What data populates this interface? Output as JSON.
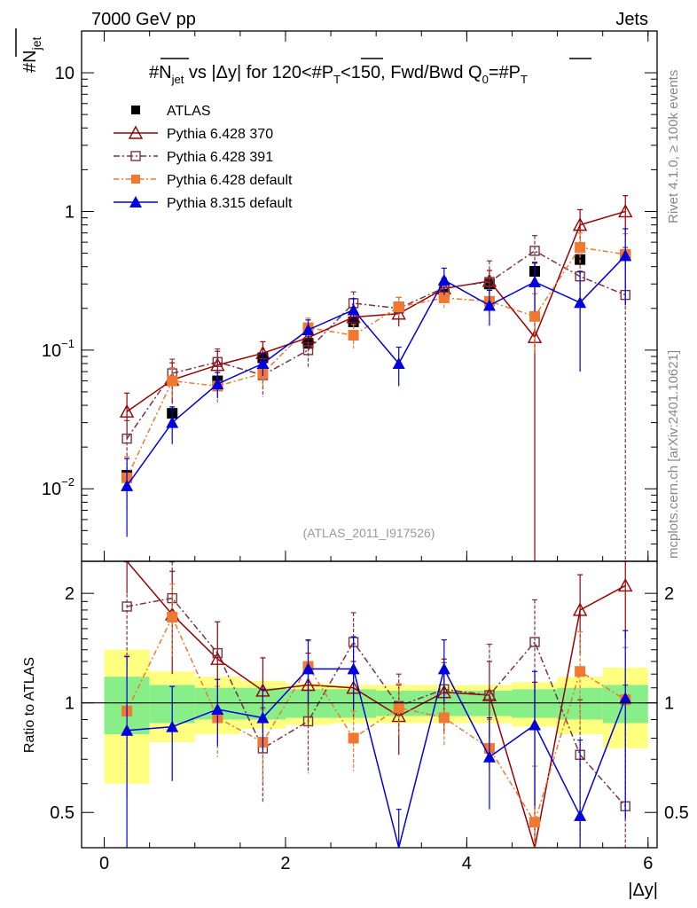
{
  "chart_data": {
    "type": "line",
    "header_left": "7000 GeV pp",
    "header_right": "Jets",
    "title": "#N̄jet vs |Δy| for 120<#P̄T<150, Fwd/Bwd Q0=#P̄T",
    "title_parts": {
      "p1": "#N",
      "p1sub": "jet",
      "p2": " vs |Δy| for 120<#P",
      "p2sub": "T",
      "p3": "<150, Fwd/Bwd Q",
      "p3sub": "0",
      "p4": "=#P",
      "p4sub": "T"
    },
    "ylabel": "#N",
    "ylabel_sub": "jet",
    "ratio_ylabel": "Ratio to ATLAS",
    "xlabel": "|Δy|",
    "xlim": [
      -0.25,
      6.1
    ],
    "ylim_main": [
      0.003,
      20
    ],
    "ylim_ratio": [
      0.4,
      2.45
    ],
    "analysis_label": "(ATLAS_2011_I917526)",
    "side_text_1": "Rivet 4.1.0, ≥ 100k events",
    "side_text_2": "mcplots.cern.ch [arXiv:2401.10621]",
    "main_yticks": [
      {
        "v": 10,
        "label": "10"
      },
      {
        "v": 1,
        "label": "1"
      },
      {
        "v": 0.1,
        "label": "10",
        "sup": "−1"
      },
      {
        "v": 0.01,
        "label": "10",
        "sup": "−2"
      }
    ],
    "ratio_yticks": [
      {
        "v": 0.5,
        "label": "0.5"
      },
      {
        "v": 1,
        "label": "1"
      },
      {
        "v": 2,
        "label": "2"
      }
    ],
    "xticks": [
      {
        "v": 0,
        "label": "0"
      },
      {
        "v": 2,
        "label": "2"
      },
      {
        "v": 4,
        "label": "4"
      },
      {
        "v": 6,
        "label": "6"
      }
    ],
    "x": [
      0.25,
      0.75,
      1.25,
      1.75,
      2.25,
      2.75,
      3.25,
      3.75,
      4.25,
      4.75,
      5.25,
      5.75
    ],
    "bin_edges": [
      0,
      0.5,
      1.0,
      1.5,
      2.0,
      2.5,
      3.0,
      3.5,
      4.0,
      4.5,
      5.0,
      5.5,
      6.0
    ],
    "band_green": [
      0.18,
      0.12,
      0.1,
      0.1,
      0.09,
      0.09,
      0.08,
      0.08,
      0.08,
      0.09,
      0.1,
      0.12
    ],
    "band_yellow": [
      0.4,
      0.22,
      0.18,
      0.15,
      0.13,
      0.12,
      0.12,
      0.12,
      0.12,
      0.14,
      0.18,
      0.25
    ],
    "data": {
      "name": "ATLAS",
      "values": [
        0.0125,
        0.035,
        0.06,
        0.088,
        0.112,
        0.16,
        0.205,
        0.26,
        0.3,
        0.37,
        0.45,
        0.48
      ],
      "errors": [
        0.002,
        0.004,
        0.006,
        0.008,
        0.01,
        0.014,
        0.018,
        0.022,
        0.025,
        0.03,
        0.04,
        0.05
      ]
    },
    "series": [
      {
        "name": "Pythia 6.428 370",
        "color": "#990000",
        "marker": "triangle-open",
        "dash": "",
        "values": [
          0.036,
          0.061,
          0.078,
          0.095,
          0.123,
          0.173,
          0.183,
          0.278,
          0.315,
          0.124,
          0.8,
          1.0
        ],
        "errors": [
          0.013,
          0.02,
          0.02,
          0.02,
          0.025,
          0.03,
          0.035,
          0.05,
          0.06,
          0.3,
          0.23,
          0.3
        ],
        "ratio": [
          2.8,
          1.75,
          1.32,
          1.08,
          1.12,
          1.1,
          0.92,
          1.07,
          1.05,
          0.34,
          1.8,
          2.1
        ],
        "ratio_err": [
          0.8,
          0.55,
          0.35,
          0.25,
          0.25,
          0.2,
          0.2,
          0.25,
          0.25,
          0.8,
          0.45,
          0.6
        ]
      },
      {
        "name": "Pythia 6.428 391",
        "color": "#7a3340",
        "marker": "square-open",
        "dash": "7,3,2,3",
        "values": [
          0.023,
          0.068,
          0.082,
          0.066,
          0.1,
          0.218,
          0.2,
          0.282,
          0.31,
          0.52,
          0.34,
          0.25
        ],
        "errors": [
          0.008,
          0.018,
          0.02,
          0.02,
          0.025,
          0.045,
          0.04,
          0.05,
          0.13,
          0.15,
          0.15,
          0.3
        ],
        "ratio": [
          1.84,
          1.94,
          1.37,
          0.75,
          0.89,
          1.47,
          0.98,
          1.09,
          1.05,
          1.47,
          0.72,
          0.52
        ],
        "ratio_err": [
          0.6,
          0.5,
          0.3,
          0.22,
          0.25,
          0.3,
          0.22,
          0.2,
          0.4,
          0.45,
          0.3,
          0.6
        ]
      },
      {
        "name": "Pythia 6.428 default",
        "color": "#f07830",
        "marker": "square-filled",
        "dash": "6,3,2,3",
        "values": [
          0.012,
          0.06,
          0.055,
          0.068,
          0.145,
          0.128,
          0.205,
          0.238,
          0.225,
          0.175,
          0.55,
          0.49
        ],
        "errors": [
          0.005,
          0.015,
          0.014,
          0.015,
          0.025,
          0.025,
          0.035,
          0.04,
          0.045,
          0.08,
          0.15,
          0.2
        ],
        "ratio": [
          0.95,
          1.72,
          0.91,
          0.78,
          1.26,
          0.8,
          0.97,
          0.91,
          0.75,
          0.47,
          1.22,
          1.02
        ],
        "ratio_err": [
          0.4,
          0.4,
          0.2,
          0.18,
          0.22,
          0.15,
          0.16,
          0.15,
          0.15,
          0.2,
          0.35,
          0.4
        ]
      },
      {
        "name": "Pythia 8.315 default",
        "color": "#0000dd",
        "marker": "triangle-filled",
        "dash": "",
        "values": [
          0.0105,
          0.03,
          0.057,
          0.08,
          0.14,
          0.195,
          0.08,
          0.32,
          0.21,
          0.31,
          0.22,
          0.48
        ],
        "errors": [
          0.006,
          0.009,
          0.012,
          0.015,
          0.025,
          0.04,
          0.025,
          0.07,
          0.06,
          0.12,
          0.15,
          0.27
        ],
        "ratio": [
          0.84,
          0.86,
          0.96,
          0.91,
          1.24,
          1.24,
          0.39,
          1.24,
          0.71,
          0.87,
          0.49,
          1.03
        ],
        "ratio_err": [
          0.5,
          0.25,
          0.2,
          0.18,
          0.25,
          0.28,
          0.12,
          0.25,
          0.2,
          0.35,
          0.3,
          0.55
        ]
      }
    ]
  }
}
